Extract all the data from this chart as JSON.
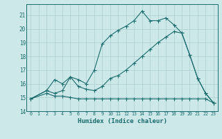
{
  "xlabel": "Humidex (Indice chaleur)",
  "bg_color": "#cce8e8",
  "grid_color": "#aacfcf",
  "line_color": "#1a6b6b",
  "xlim": [
    -0.5,
    23.5
  ],
  "ylim": [
    14,
    21.8
  ],
  "yticks": [
    14,
    15,
    16,
    17,
    18,
    19,
    20,
    21
  ],
  "xticks": [
    0,
    1,
    2,
    3,
    4,
    5,
    6,
    7,
    8,
    9,
    10,
    11,
    12,
    13,
    14,
    15,
    16,
    17,
    18,
    19,
    20,
    21,
    22,
    23
  ],
  "line1_x": [
    0,
    2,
    3,
    4,
    5,
    6,
    7,
    8,
    9,
    10,
    11,
    12,
    13,
    14,
    15,
    16,
    17,
    18,
    19,
    20,
    21,
    22,
    23
  ],
  "line1_y": [
    14.9,
    15.3,
    15.1,
    15.1,
    15.0,
    14.9,
    14.9,
    14.9,
    14.9,
    14.9,
    14.9,
    14.9,
    14.9,
    14.9,
    14.9,
    14.9,
    14.9,
    14.9,
    14.9,
    14.9,
    14.9,
    14.9,
    14.6
  ],
  "line2_x": [
    0,
    2,
    3,
    4,
    5,
    6,
    7,
    8,
    9,
    10,
    11,
    12,
    13,
    14,
    15,
    16,
    17,
    18,
    19,
    20,
    21,
    22,
    23
  ],
  "line2_y": [
    14.9,
    15.5,
    16.3,
    16.0,
    16.5,
    15.8,
    15.6,
    15.5,
    15.8,
    16.4,
    16.6,
    17.0,
    17.5,
    18.0,
    18.5,
    19.0,
    19.4,
    19.8,
    19.7,
    18.1,
    16.4,
    15.3,
    14.6
  ],
  "line3_x": [
    0,
    2,
    3,
    4,
    5,
    6,
    7,
    8,
    9,
    10,
    11,
    12,
    13,
    14,
    15,
    16,
    17,
    18,
    19,
    20,
    21,
    22,
    23
  ],
  "line3_y": [
    14.9,
    15.5,
    15.3,
    15.5,
    16.5,
    16.3,
    16.0,
    17.0,
    18.9,
    19.5,
    19.9,
    20.2,
    20.6,
    21.3,
    20.6,
    20.6,
    20.8,
    20.3,
    19.7,
    18.1,
    16.4,
    15.3,
    14.6
  ]
}
